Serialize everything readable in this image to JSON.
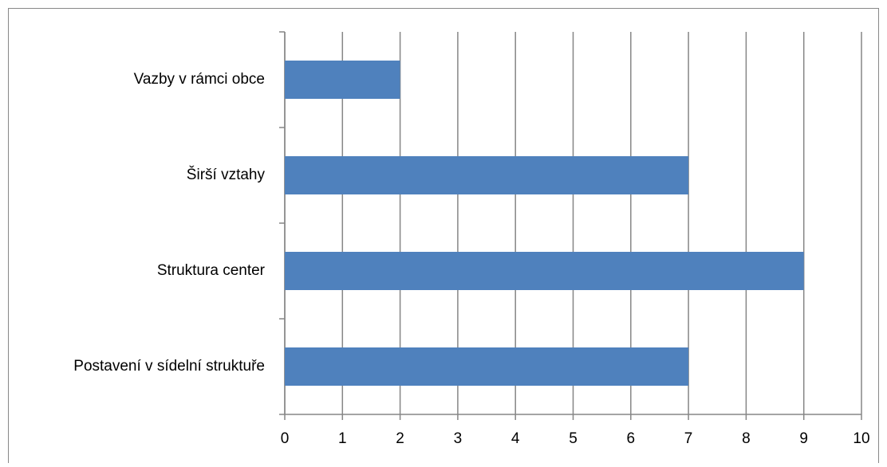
{
  "chart_data": {
    "type": "barh",
    "categories": [
      "Vazby v rámci obce",
      "Širší vztahy",
      "Struktura center",
      "Postavení v sídelní struktuře"
    ],
    "values": [
      2,
      7,
      9,
      7
    ],
    "color": "#4f81bd",
    "xlim": [
      0,
      10
    ],
    "xticks": [
      0,
      1,
      2,
      3,
      4,
      5,
      6,
      7,
      8,
      9,
      10
    ],
    "grid": true
  }
}
